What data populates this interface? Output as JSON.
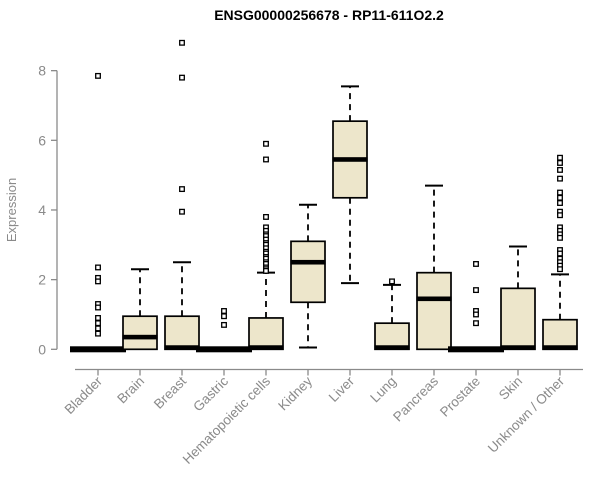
{
  "chart_data": {
    "type": "boxplot",
    "title": "ENSG00000256678 - RP11-611O2.2",
    "ylabel": "Expression",
    "xlabel": "",
    "ylim": [
      0,
      8.9
    ],
    "yticks": [
      0,
      2,
      4,
      6,
      8
    ],
    "grid": false,
    "legend": "none",
    "box_fill_color": "#EDE6CB",
    "box_line_color": "#000000",
    "axis_color": "#8A8A8A",
    "categories": [
      "Bladder",
      "Brain",
      "Breast",
      "Gastric",
      "Hematopoietic cells",
      "Kidney",
      "Liver",
      "Lung",
      "Pancreas",
      "Prostate",
      "Skin",
      "Unknown / Other"
    ],
    "series": [
      {
        "name": "Bladder",
        "whislo": 0,
        "q1": 0,
        "med": 0,
        "q3": 0,
        "whishi": 0,
        "outliers": [
          7.85,
          2.35,
          2.05,
          1.95,
          1.3,
          1.2,
          0.9,
          0.75,
          0.6,
          0.45
        ]
      },
      {
        "name": "Brain",
        "whislo": 0,
        "q1": 0,
        "med": 0.35,
        "q3": 0.95,
        "whishi": 2.3,
        "outliers": []
      },
      {
        "name": "Breast",
        "whislo": 0,
        "q1": 0,
        "med": 0.05,
        "q3": 0.95,
        "whishi": 2.5,
        "outliers": [
          8.8,
          7.8,
          4.6,
          3.95
        ]
      },
      {
        "name": "Gastric",
        "whislo": 0,
        "q1": 0,
        "med": 0,
        "q3": 0,
        "whishi": 0,
        "outliers": [
          1.1,
          0.95,
          0.7
        ]
      },
      {
        "name": "Hematopoietic cells",
        "whislo": 0,
        "q1": 0,
        "med": 0.05,
        "q3": 0.9,
        "whishi": 2.2,
        "outliers": [
          5.9,
          5.45,
          3.8,
          3.5,
          3.4,
          3.3,
          3.25,
          3.15,
          3.05,
          3.0,
          2.9,
          2.8,
          2.75,
          2.65,
          2.6,
          2.5,
          2.45,
          2.35,
          2.3,
          2.25
        ]
      },
      {
        "name": "Kidney",
        "whislo": 0.05,
        "q1": 1.35,
        "med": 2.5,
        "q3": 3.1,
        "whishi": 4.15,
        "outliers": []
      },
      {
        "name": "Liver",
        "whislo": 1.9,
        "q1": 4.35,
        "med": 5.45,
        "q3": 6.55,
        "whishi": 7.55,
        "outliers": []
      },
      {
        "name": "Lung",
        "whislo": 0,
        "q1": 0,
        "med": 0.05,
        "q3": 0.75,
        "whishi": 1.85,
        "outliers": [
          1.95
        ]
      },
      {
        "name": "Pancreas",
        "whislo": 0,
        "q1": 0,
        "med": 1.45,
        "q3": 2.2,
        "whishi": 4.7,
        "outliers": []
      },
      {
        "name": "Prostate",
        "whislo": 0,
        "q1": 0,
        "med": 0,
        "q3": 0,
        "whishi": 0,
        "outliers": [
          2.45,
          1.7,
          1.1,
          1.0,
          0.75
        ]
      },
      {
        "name": "Skin",
        "whislo": 0,
        "q1": 0,
        "med": 0.05,
        "q3": 1.75,
        "whishi": 2.95,
        "outliers": []
      },
      {
        "name": "Unknown / Other",
        "whislo": 0,
        "q1": 0,
        "med": 0.05,
        "q3": 0.85,
        "whishi": 2.15,
        "outliers": [
          5.5,
          5.35,
          5.15,
          4.9,
          4.5,
          4.35,
          4.2,
          3.95,
          3.85,
          3.5,
          3.4,
          3.3,
          3.2,
          2.85,
          2.75,
          2.6,
          2.5,
          2.4,
          2.3
        ]
      }
    ]
  }
}
